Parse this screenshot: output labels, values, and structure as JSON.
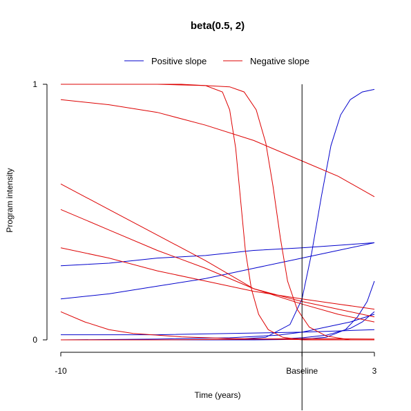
{
  "chart_data": {
    "type": "line",
    "title": "beta(0.5, 2)",
    "xlabel": "Time (years)",
    "ylabel": "Program intensity",
    "xlim": [
      -10,
      3
    ],
    "ylim": [
      0,
      1
    ],
    "x_ticks": [
      {
        "value": -10,
        "label": "-10"
      },
      {
        "value": 0,
        "label": "Baseline"
      },
      {
        "value": 3,
        "label": "3"
      }
    ],
    "y_ticks": [
      {
        "value": 0,
        "label": "0"
      },
      {
        "value": 1,
        "label": "1"
      }
    ],
    "vline_x": 0,
    "legend": {
      "position": "top",
      "entries": [
        {
          "label": "Positive slope",
          "color": "#0000cc"
        },
        {
          "label": "Negative slope",
          "color": "#dd0000"
        }
      ]
    },
    "grid": false,
    "series": [
      {
        "group": "positive",
        "color": "#0000cc",
        "points": [
          [
            -10,
            0.0
          ],
          [
            -6,
            0.0
          ],
          [
            -3,
            0.0
          ],
          [
            -1.5,
            0.01
          ],
          [
            -0.5,
            0.06
          ],
          [
            0,
            0.16
          ],
          [
            0.4,
            0.34
          ],
          [
            0.8,
            0.56
          ],
          [
            1.2,
            0.76
          ],
          [
            1.6,
            0.88
          ],
          [
            2.0,
            0.94
          ],
          [
            2.5,
            0.97
          ],
          [
            3,
            0.98
          ]
        ]
      },
      {
        "group": "positive",
        "color": "#0000cc",
        "points": [
          [
            -10,
            0.29
          ],
          [
            -8,
            0.3
          ],
          [
            -6,
            0.32
          ],
          [
            -4,
            0.33
          ],
          [
            -2,
            0.35
          ],
          [
            0,
            0.36
          ],
          [
            1.5,
            0.37
          ],
          [
            3,
            0.38
          ]
        ]
      },
      {
        "group": "positive",
        "color": "#0000cc",
        "points": [
          [
            -10,
            0.16
          ],
          [
            -8,
            0.18
          ],
          [
            -6,
            0.21
          ],
          [
            -4,
            0.24
          ],
          [
            -2,
            0.28
          ],
          [
            0,
            0.32
          ],
          [
            1.5,
            0.35
          ],
          [
            3,
            0.38
          ]
        ]
      },
      {
        "group": "positive",
        "color": "#0000cc",
        "points": [
          [
            -10,
            0.02
          ],
          [
            -6,
            0.02
          ],
          [
            -3,
            0.025
          ],
          [
            0,
            0.03
          ],
          [
            1.5,
            0.035
          ],
          [
            3,
            0.04
          ]
        ]
      },
      {
        "group": "positive",
        "color": "#0000cc",
        "points": [
          [
            -10,
            0.0
          ],
          [
            -6,
            0.003
          ],
          [
            -3,
            0.008
          ],
          [
            -1,
            0.018
          ],
          [
            0,
            0.03
          ],
          [
            1,
            0.05
          ],
          [
            2,
            0.07
          ],
          [
            3,
            0.1
          ]
        ]
      },
      {
        "group": "positive",
        "color": "#0000cc",
        "points": [
          [
            -10,
            0.0
          ],
          [
            -4,
            0.0
          ],
          [
            -1,
            0.003
          ],
          [
            0,
            0.008
          ],
          [
            1,
            0.018
          ],
          [
            2,
            0.045
          ],
          [
            2.5,
            0.07
          ],
          [
            3,
            0.11
          ]
        ]
      },
      {
        "group": "positive",
        "color": "#0000cc",
        "points": [
          [
            -10,
            0.0
          ],
          [
            -2,
            0.0
          ],
          [
            0,
            0.002
          ],
          [
            1,
            0.01
          ],
          [
            1.8,
            0.04
          ],
          [
            2.3,
            0.09
          ],
          [
            2.7,
            0.15
          ],
          [
            3,
            0.23
          ]
        ]
      },
      {
        "group": "negative",
        "color": "#dd0000",
        "points": [
          [
            -10,
            1.0
          ],
          [
            -6,
            1.0
          ],
          [
            -4,
            0.995
          ],
          [
            -3.3,
            0.97
          ],
          [
            -3.0,
            0.9
          ],
          [
            -2.75,
            0.75
          ],
          [
            -2.55,
            0.55
          ],
          [
            -2.35,
            0.35
          ],
          [
            -2.1,
            0.2
          ],
          [
            -1.8,
            0.1
          ],
          [
            -1.4,
            0.04
          ],
          [
            -0.8,
            0.01
          ],
          [
            0,
            0.0
          ],
          [
            3,
            0.0
          ]
        ]
      },
      {
        "group": "negative",
        "color": "#dd0000",
        "points": [
          [
            -10,
            1.0
          ],
          [
            -5,
            1.0
          ],
          [
            -3,
            0.99
          ],
          [
            -2.4,
            0.97
          ],
          [
            -1.9,
            0.9
          ],
          [
            -1.5,
            0.77
          ],
          [
            -1.2,
            0.6
          ],
          [
            -0.9,
            0.4
          ],
          [
            -0.6,
            0.23
          ],
          [
            -0.2,
            0.12
          ],
          [
            0.3,
            0.05
          ],
          [
            1,
            0.015
          ],
          [
            2,
            0.0
          ],
          [
            3,
            0.0
          ]
        ]
      },
      {
        "group": "negative",
        "color": "#dd0000",
        "points": [
          [
            -10,
            0.94
          ],
          [
            -8,
            0.92
          ],
          [
            -6,
            0.89
          ],
          [
            -4,
            0.84
          ],
          [
            -2,
            0.78
          ],
          [
            0,
            0.7
          ],
          [
            1.5,
            0.64
          ],
          [
            3,
            0.56
          ]
        ]
      },
      {
        "group": "negative",
        "color": "#dd0000",
        "points": [
          [
            -10,
            0.61
          ],
          [
            -8,
            0.51
          ],
          [
            -6,
            0.41
          ],
          [
            -4,
            0.31
          ],
          [
            -2,
            0.2
          ],
          [
            0,
            0.14
          ],
          [
            1.5,
            0.1
          ],
          [
            3,
            0.07
          ]
        ]
      },
      {
        "group": "negative",
        "color": "#dd0000",
        "points": [
          [
            -10,
            0.51
          ],
          [
            -8,
            0.43
          ],
          [
            -6,
            0.35
          ],
          [
            -4,
            0.28
          ],
          [
            -2,
            0.2
          ],
          [
            0,
            0.15
          ],
          [
            1.5,
            0.12
          ],
          [
            3,
            0.09
          ]
        ]
      },
      {
        "group": "negative",
        "color": "#dd0000",
        "points": [
          [
            -10,
            0.36
          ],
          [
            -8,
            0.32
          ],
          [
            -6,
            0.27
          ],
          [
            -4,
            0.23
          ],
          [
            -2,
            0.19
          ],
          [
            0,
            0.16
          ],
          [
            1.5,
            0.14
          ],
          [
            3,
            0.12
          ]
        ]
      },
      {
        "group": "negative",
        "color": "#dd0000",
        "points": [
          [
            -10,
            0.11
          ],
          [
            -9,
            0.07
          ],
          [
            -8,
            0.04
          ],
          [
            -7,
            0.025
          ],
          [
            -5,
            0.012
          ],
          [
            -3,
            0.005
          ],
          [
            0,
            0.001
          ],
          [
            3,
            0.0
          ]
        ]
      },
      {
        "group": "negative",
        "color": "#dd0000",
        "points": [
          [
            -10,
            0.0
          ],
          [
            -6,
            0.0
          ],
          [
            -3,
            0.002
          ],
          [
            0,
            0.005
          ],
          [
            3,
            0.003
          ]
        ]
      }
    ]
  }
}
